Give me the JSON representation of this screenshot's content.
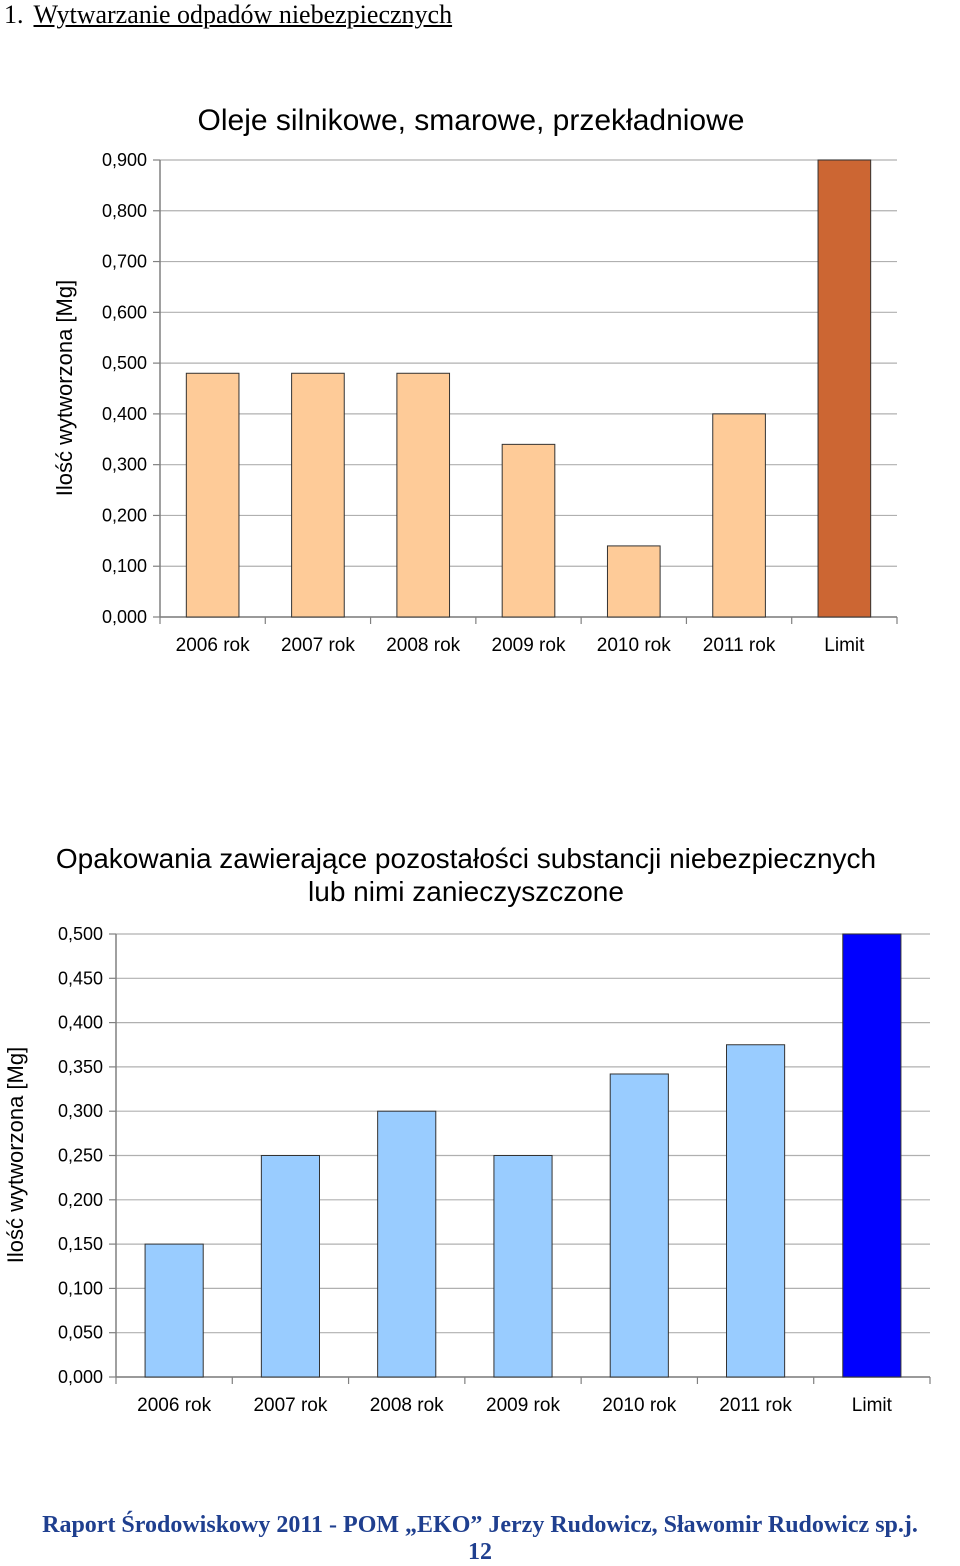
{
  "heading": {
    "number": "1.",
    "title": "Wytwarzanie odpadów niebezpiecznych"
  },
  "chart_data": [
    {
      "type": "bar",
      "title": "Oleje silnikowe, smarowe, przekładniowe",
      "title_lines": [
        "Oleje silnikowe, smarowe, przekładniowe"
      ],
      "ylabel": "Ilość wytworzona [Mg]",
      "xlabel": "",
      "categories": [
        "2006 rok",
        "2007 rok",
        "2008 rok",
        "2009 rok",
        "2010 rok",
        "2011 rok",
        "Limit"
      ],
      "values": [
        0.48,
        0.48,
        0.48,
        0.34,
        0.14,
        0.4,
        0.9
      ],
      "bar_colors": [
        "#fecb98",
        "#fecb98",
        "#fecb98",
        "#fecb98",
        "#fecb98",
        "#fecb98",
        "#cc6633"
      ],
      "ylim": [
        0,
        0.9
      ],
      "yticks": [
        0,
        0.1,
        0.2,
        0.3,
        0.4,
        0.5,
        0.6,
        0.7,
        0.8,
        0.9
      ],
      "ytick_labels": [
        "0,000",
        "0,100",
        "0,200",
        "0,300",
        "0,400",
        "0,500",
        "0,600",
        "0,700",
        "0,800",
        "0,900"
      ],
      "grid": true,
      "legend": "none"
    },
    {
      "type": "bar",
      "title": "Opakowania zawierające pozostałości substancji niebezpiecznych lub nimi zanieczyszczone",
      "title_lines": [
        "Opakowania zawierające pozostałości substancji niebezpiecznych",
        "lub nimi zanieczyszczone"
      ],
      "ylabel": "Ilość wytworzona [Mg]",
      "xlabel": "",
      "categories": [
        "2006 rok",
        "2007 rok",
        "2008 rok",
        "2009 rok",
        "2010 rok",
        "2011 rok",
        "Limit"
      ],
      "values": [
        0.15,
        0.25,
        0.3,
        0.25,
        0.342,
        0.375,
        0.5
      ],
      "bar_colors": [
        "#99ccff",
        "#99ccff",
        "#99ccff",
        "#99ccff",
        "#99ccff",
        "#99ccff",
        "#0000ff"
      ],
      "ylim": [
        0,
        0.5
      ],
      "yticks": [
        0,
        0.05,
        0.1,
        0.15,
        0.2,
        0.25,
        0.3,
        0.35,
        0.4,
        0.45,
        0.5
      ],
      "ytick_labels": [
        "0,000",
        "0,050",
        "0,100",
        "0,150",
        "0,200",
        "0,250",
        "0,300",
        "0,350",
        "0,400",
        "0,450",
        "0,500"
      ],
      "grid": true,
      "legend": "none"
    }
  ],
  "footer": {
    "line1": "Raport Środowiskowy 2011 - POM „EKO” Jerzy Rudowicz, Sławomir Rudowicz sp.j.",
    "page_number": "12"
  }
}
